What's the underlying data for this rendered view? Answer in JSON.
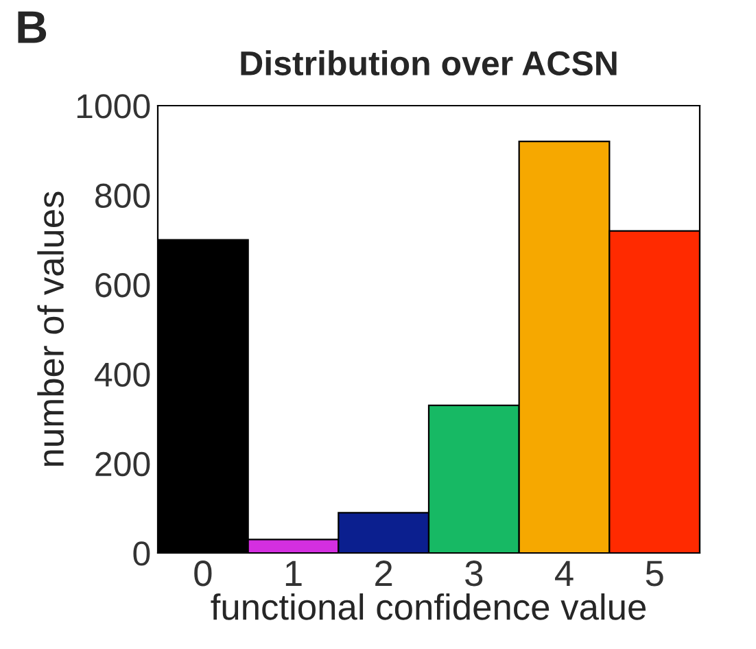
{
  "chart_data": {
    "type": "bar",
    "title": "Distribution over ACSN",
    "xlabel": "functional confidence value",
    "ylabel": "number of values",
    "categories": [
      "0",
      "1",
      "2",
      "3",
      "4",
      "5"
    ],
    "values": [
      700,
      30,
      90,
      330,
      920,
      720
    ],
    "colors": [
      "#000000",
      "#d42fe0",
      "#0b1f8f",
      "#17b964",
      "#f6a800",
      "#ff2a00"
    ],
    "ylim": [
      0,
      1000
    ],
    "yticks": [
      0,
      200,
      400,
      600,
      800,
      1000
    ],
    "grid": false,
    "annotations": [
      "B"
    ]
  }
}
